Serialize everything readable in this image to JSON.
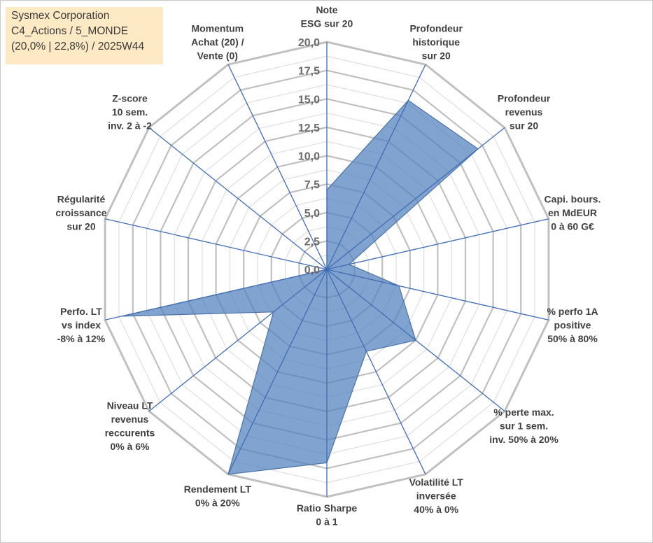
{
  "title_box": {
    "line1": "Sysmex Corporation",
    "line2": "C4_Actions / 5_MONDE",
    "line3": "(20,0% | 22,8%) / 2025W44"
  },
  "chart_data": {
    "type": "radar",
    "title": "Sysmex Corporation",
    "rmin": 0,
    "rmax": 20,
    "tick_step": 2.5,
    "tick_labels": [
      "0,0",
      "2,5",
      "5,0",
      "7,5",
      "10,0",
      "12,5",
      "15,0",
      "17,5",
      "20,0"
    ],
    "minor_ring_step": 1.25,
    "categories": [
      [
        "Note",
        "ESG sur 20"
      ],
      [
        "Profondeur",
        "historique",
        "sur 20"
      ],
      [
        "Profondeur",
        "revenus",
        "sur 20"
      ],
      [
        "Capi. bours.",
        "en MdEUR",
        "0 à 60 G€"
      ],
      [
        "% perfo 1A",
        "positive",
        "50% à 80%"
      ],
      [
        "% perte max.",
        "sur 1 sem.",
        "inv. 50% à 20%"
      ],
      [
        "Volatilité LT",
        "inversée",
        "40% à 0%"
      ],
      [
        "Ratio Sharpe",
        "0 à 1"
      ],
      [
        "Rendement LT",
        "0% à 20%"
      ],
      [
        "Niveau LT",
        "revenus",
        "reccurents",
        "0% à 6%"
      ],
      [
        "Perfo. LT",
        "vs index",
        "-8% à 12%"
      ],
      [
        "Régularité",
        "croissance",
        "sur 20"
      ],
      [
        "Z-score",
        "10 sem.",
        "inv. 2 à -2"
      ],
      [
        "Momentum",
        "Achat (20) /",
        "Vente (0)"
      ]
    ],
    "series": [
      {
        "name": "Sysmex Corporation",
        "color": "#4f81bd",
        "values": [
          7.0,
          16.5,
          17.0,
          2.0,
          6.5,
          10.0,
          8.0,
          17.0,
          20.0,
          6.0,
          18.5,
          0.0,
          0.0,
          0.0
        ]
      }
    ]
  }
}
